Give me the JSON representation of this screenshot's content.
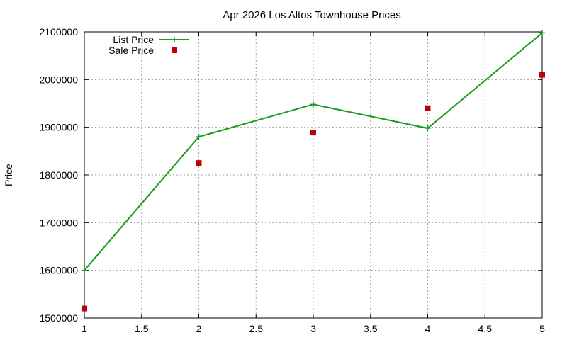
{
  "chart_data": {
    "type": "line",
    "title": "Apr 2026 Los Altos Townhouse Prices",
    "xlabel": "",
    "ylabel": "Price",
    "xlim": [
      1,
      5
    ],
    "ylim": [
      1500000,
      2100000
    ],
    "x_ticks": [
      1,
      1.5,
      2,
      2.5,
      3,
      3.5,
      4,
      4.5,
      5
    ],
    "x_tick_labels": [
      "1",
      "1.5",
      "2",
      "2.5",
      "3",
      "3.5",
      "4",
      "4.5",
      "5"
    ],
    "y_ticks": [
      1500000,
      1600000,
      1700000,
      1800000,
      1900000,
      2000000,
      2100000
    ],
    "y_tick_labels": [
      "1500000",
      "1600000",
      "1700000",
      "1800000",
      "1900000",
      "2000000",
      "2100000"
    ],
    "grid": true,
    "legend_position": "top-left",
    "series": [
      {
        "name": "List Price",
        "style": "lines+points",
        "marker": "plus",
        "color": "#1a9a1a",
        "x": [
          1,
          2,
          3,
          4,
          5
        ],
        "y": [
          1600000,
          1880000,
          1948000,
          1898000,
          2098000
        ]
      },
      {
        "name": "Sale Price",
        "style": "points",
        "marker": "square",
        "color": "#c00000",
        "x": [
          1,
          2,
          3,
          4,
          5
        ],
        "y": [
          1520000,
          1825000,
          1889000,
          1940000,
          2010000
        ]
      }
    ]
  }
}
